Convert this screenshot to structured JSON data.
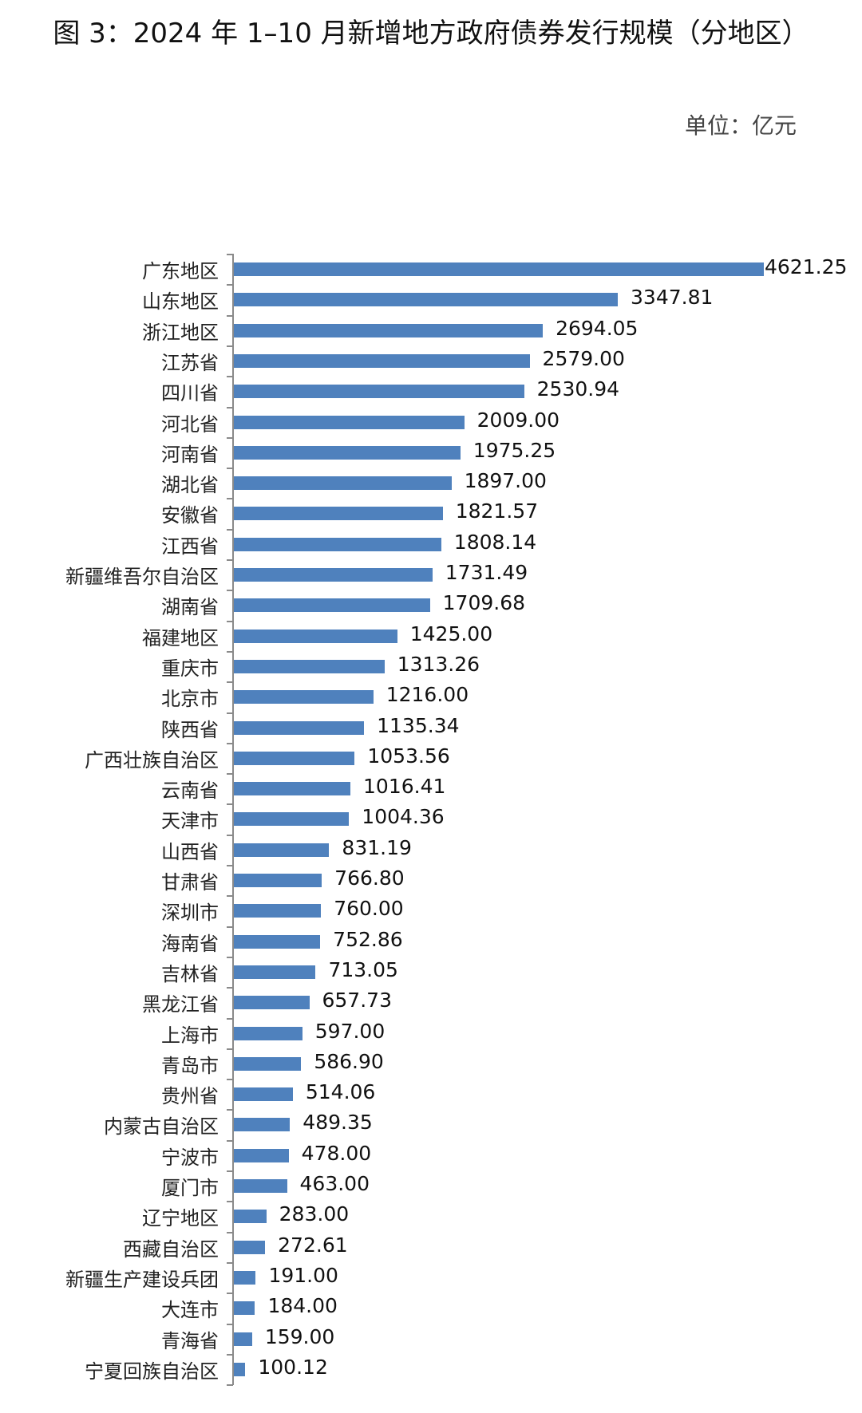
{
  "title": "图 3：2024 年 1–10 月新增地方政府债券发行规模（分地区）",
  "unit": "单位：亿元",
  "chart_data": {
    "type": "bar",
    "orientation": "horizontal",
    "title": "图 3：2024 年 1–10 月新增地方政府债券发行规模（分地区）",
    "xlabel": "",
    "ylabel": "",
    "unit": "亿元",
    "grid": false,
    "legend": null,
    "color": "#4f81bd",
    "categories": [
      "广东地区",
      "山东地区",
      "浙江地区",
      "江苏省",
      "四川省",
      "河北省",
      "河南省",
      "湖北省",
      "安徽省",
      "江西省",
      "新疆维吾尔自治区",
      "湖南省",
      "福建地区",
      "重庆市",
      "北京市",
      "陕西省",
      "广西壮族自治区",
      "云南省",
      "天津市",
      "山西省",
      "甘肃省",
      "深圳市",
      "海南省",
      "吉林省",
      "黑龙江省",
      "上海市",
      "青岛市",
      "贵州省",
      "内蒙古自治区",
      "宁波市",
      "厦门市",
      "辽宁地区",
      "西藏自治区",
      "新疆生产建设兵团",
      "大连市",
      "青海省",
      "宁夏回族自治区"
    ],
    "values": [
      4621.25,
      3347.81,
      2694.05,
      2579.0,
      2530.94,
      2009.0,
      1975.25,
      1897.0,
      1821.57,
      1808.14,
      1731.49,
      1709.68,
      1425.0,
      1313.26,
      1216.0,
      1135.34,
      1053.56,
      1016.41,
      1004.36,
      831.19,
      766.8,
      760.0,
      752.86,
      713.05,
      657.73,
      597.0,
      586.9,
      514.06,
      489.35,
      478.0,
      463.0,
      283.0,
      272.61,
      191.0,
      184.0,
      159.0,
      100.12
    ],
    "labels": [
      "4621.25",
      "3347.81",
      "2694.05",
      "2579.00",
      "2530.94",
      "2009.00",
      "1975.25",
      "1897.00",
      "1821.57",
      "1808.14",
      "1731.49",
      "1709.68",
      "1425.00",
      "1313.26",
      "1216.00",
      "1135.34",
      "1053.56",
      "1016.41",
      "1004.36",
      "831.19",
      "766.80",
      "760.00",
      "752.86",
      "713.05",
      "657.73",
      "597.00",
      "586.90",
      "514.06",
      "489.35",
      "478.00",
      "463.00",
      "283.00",
      "272.61",
      "191.00",
      "184.00",
      "159.00",
      "100.12"
    ],
    "xlim": [
      0,
      4621.25
    ]
  }
}
